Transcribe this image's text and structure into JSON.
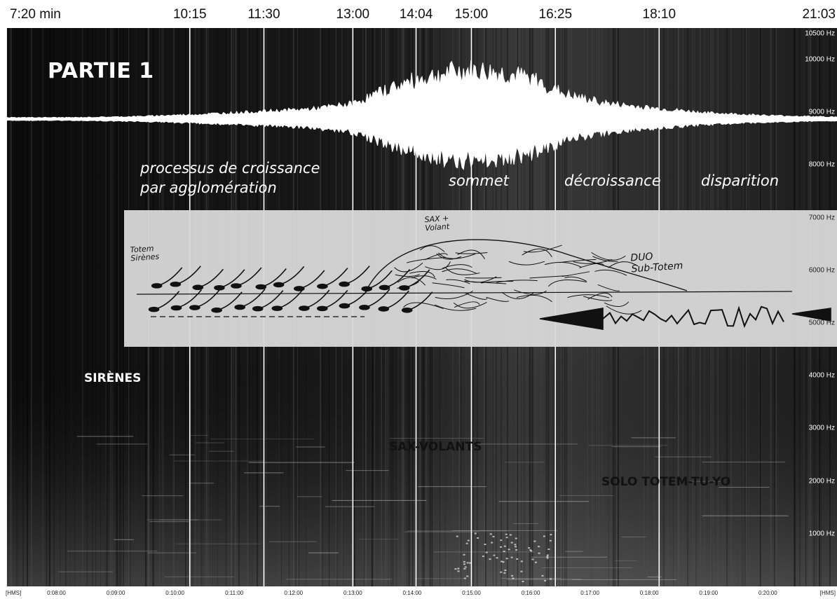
{
  "chart_data": {
    "type": "spectrogram",
    "section_title": "PARTIE 1",
    "time_markers": [
      "7:20 min",
      "10:15",
      "11:30",
      "13:00",
      "14:04",
      "15:00",
      "16:25",
      "18:10",
      "21:03"
    ],
    "marker_seconds": [
      440,
      615,
      690,
      780,
      844,
      900,
      985,
      1090,
      1263
    ],
    "marker_lines": [
      false,
      true,
      true,
      true,
      true,
      true,
      true,
      true,
      false
    ],
    "y_axis": {
      "unit": "Hz",
      "ticks": [
        "1000 Hz",
        "2000 Hz",
        "3000 Hz",
        "4000 Hz",
        "5000 Hz",
        "6000 Hz",
        "7000 Hz",
        "8000 Hz",
        "9000 Hz",
        "10000 Hz",
        "10500 Hz"
      ],
      "tick_values": [
        1000,
        2000,
        3000,
        4000,
        5000,
        6000,
        7000,
        8000,
        9000,
        10000,
        10500
      ],
      "ylim": [
        0,
        10600
      ]
    },
    "x_axis": {
      "unit": "[HMS]",
      "ticks": [
        "[HMS]",
        "0:08:00",
        "0:09:00",
        "0:10:00",
        "0:11:00",
        "0:12:00",
        "0:13:00",
        "0:14:00",
        "0:15:00",
        "0:16:00",
        "0:17:00",
        "0:18:00",
        "0:19:00",
        "0:20:00",
        "[HMS]"
      ],
      "tick_seconds": [
        430,
        480,
        540,
        600,
        660,
        720,
        780,
        840,
        900,
        960,
        1020,
        1080,
        1140,
        1200,
        1270
      ],
      "xlim": [
        430,
        1270
      ]
    },
    "phases": [
      {
        "label": "processus de croissance\npar agglomération",
        "start_seconds": 540
      },
      {
        "label": "sommet",
        "start_seconds": 900
      },
      {
        "label": "décroissance",
        "start_seconds": 985
      },
      {
        "label": "disparition",
        "start_seconds": 1090
      }
    ],
    "voices": [
      {
        "label": "SIRÈNES",
        "color": "#ffffff"
      },
      {
        "label": "SAX-VOLANTS",
        "color": "#111111"
      },
      {
        "label": "SOLO TOTEM-TU-YO",
        "color": "#111111"
      }
    ],
    "score_annotations": [
      "Totem\nSirènes",
      "SAX +\nVolant",
      "DUO\nSub-Totem"
    ],
    "waveform_envelope": {
      "seconds": [
        430,
        500,
        560,
        620,
        680,
        740,
        780,
        820,
        850,
        880,
        900,
        930,
        960,
        980,
        1000,
        1040,
        1090,
        1140,
        1200,
        1270
      ],
      "amplitude": [
        0.03,
        0.03,
        0.05,
        0.09,
        0.14,
        0.2,
        0.3,
        0.62,
        0.8,
        0.92,
        0.95,
        0.9,
        0.8,
        0.62,
        0.45,
        0.3,
        0.2,
        0.12,
        0.07,
        0.04
      ]
    }
  }
}
